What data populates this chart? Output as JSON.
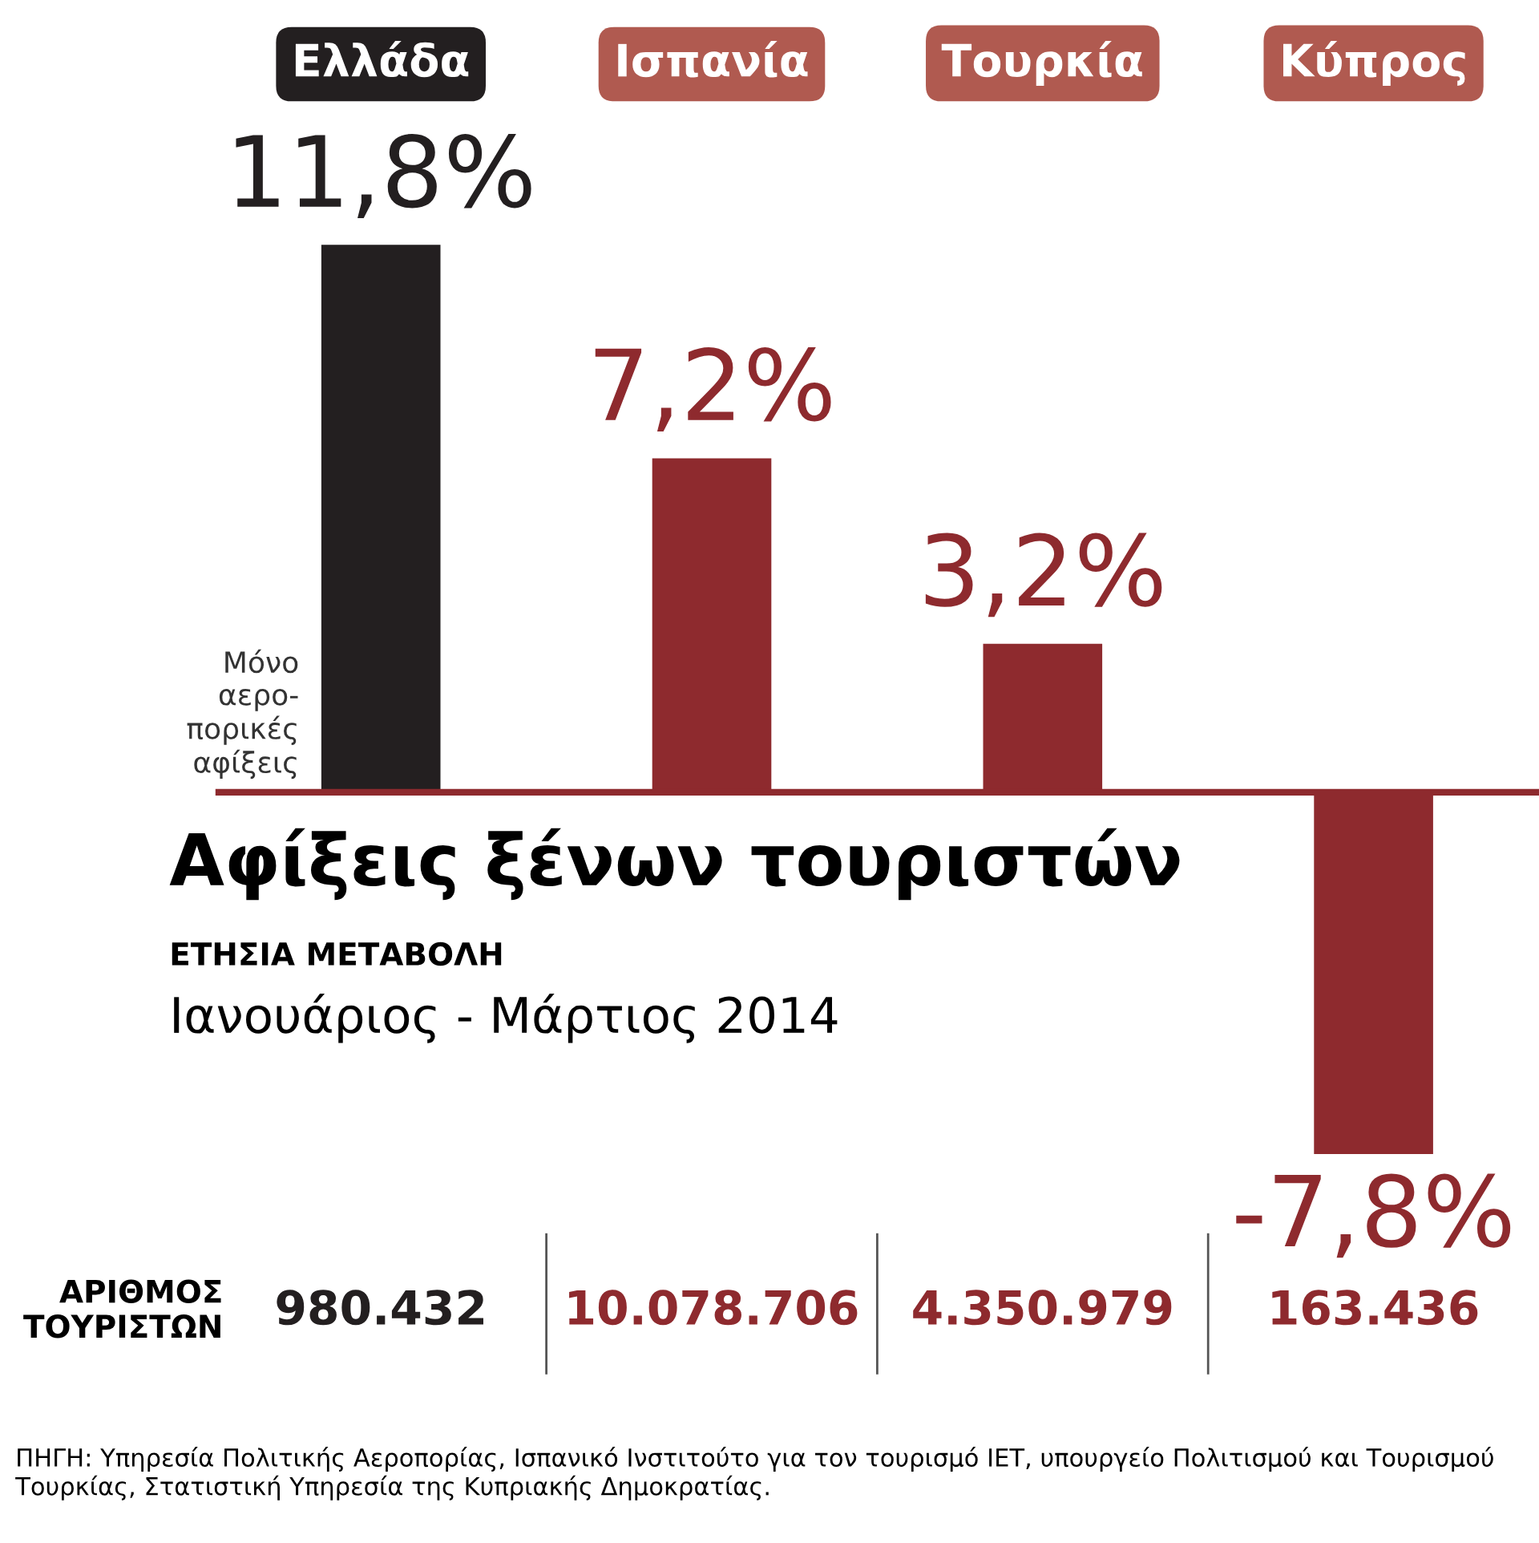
{
  "chart_data": {
    "type": "bar",
    "title": "Αφίξεις ξένων τουριστών",
    "subtitle": "ΕΤΗΣΙΑ ΜΕΤΑΒΟΛΗ",
    "categories": [
      "Ελλάδα",
      "Ισπανία",
      "Τουρκία",
      "Κύπρος"
    ],
    "values": [
      11.8,
      7.2,
      3.2,
      -7.8
    ],
    "value_labels": [
      "11,8%",
      "7,2%",
      "3,2%",
      "-7,8%"
    ],
    "colors": [
      "#231f20",
      "#8e2a2e",
      "#8e2a2e",
      "#8e2a2e"
    ],
    "tick_labels": "x",
    "ref_lines": [
      {
        "axis": "y",
        "value": 0,
        "color": "#8e2a2e"
      }
    ],
    "annotations": [
      "Μόνο\nαερο-\nπορικές\nαφίξεις",
      "Ιανουάριος - Μάρτιος 2014",
      "ΑΡΙΘΜΟΣ\nΤΟΥΡΙΣΤΩΝ",
      "980.432",
      "10.078.706",
      "4.350.979",
      "163.436",
      "ΠΗΓΗ: Υπηρεσία Πολιτικής Αεροπορίας, Ισπανικό Ινστιτούτο για τον τουρισμό IET, υπουργείο Πολιτισμού και Τουρισμού Τουρκίας, Στατιστική Υπηρεσία της Κυπριακής Δημοκρατίας."
    ]
  }
}
